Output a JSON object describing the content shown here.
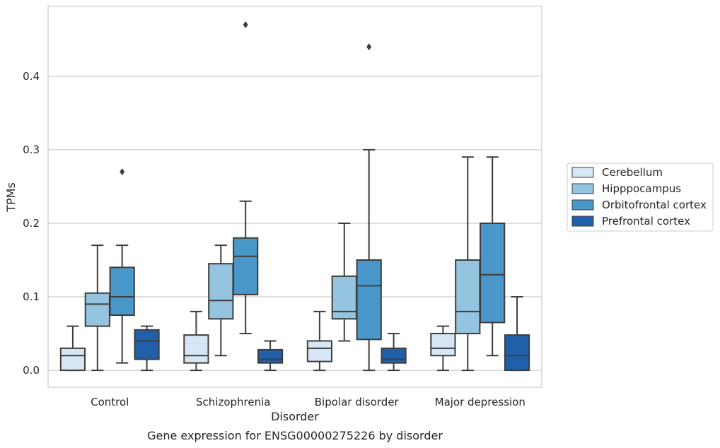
{
  "caption": "Gene expression for ENSG00000275226 by disorder",
  "chart_data": {
    "type": "box",
    "title": "",
    "xlabel": "Disorder",
    "ylabel": "TPMs",
    "ylim": [
      -0.023,
      0.495
    ],
    "yticks": [
      0.0,
      0.1,
      0.2,
      0.3,
      0.4
    ],
    "ytick_labels": [
      "0.0",
      "0.1",
      "0.2",
      "0.3",
      "0.4"
    ],
    "grid": "horizontal",
    "legend_position": "right",
    "categories": [
      "Control",
      "Schizophrenia",
      "Bipolar disorder",
      "Major depression"
    ],
    "series": [
      {
        "name": "Cerebellum",
        "color": "#d6e6f4",
        "boxes": [
          {
            "whisker_low": 0.0,
            "q1": 0.0,
            "median": 0.02,
            "q3": 0.03,
            "whisker_high": 0.06,
            "outliers": []
          },
          {
            "whisker_low": 0.0,
            "q1": 0.01,
            "median": 0.02,
            "q3": 0.048,
            "whisker_high": 0.08,
            "outliers": []
          },
          {
            "whisker_low": 0.0,
            "q1": 0.012,
            "median": 0.03,
            "q3": 0.04,
            "whisker_high": 0.08,
            "outliers": []
          },
          {
            "whisker_low": 0.0,
            "q1": 0.02,
            "median": 0.03,
            "q3": 0.05,
            "whisker_high": 0.06,
            "outliers": []
          }
        ]
      },
      {
        "name": "Hipppocampus",
        "color": "#94c4df",
        "boxes": [
          {
            "whisker_low": 0.0,
            "q1": 0.06,
            "median": 0.09,
            "q3": 0.105,
            "whisker_high": 0.17,
            "outliers": []
          },
          {
            "whisker_low": 0.02,
            "q1": 0.07,
            "median": 0.095,
            "q3": 0.145,
            "whisker_high": 0.17,
            "outliers": []
          },
          {
            "whisker_low": 0.04,
            "q1": 0.07,
            "median": 0.08,
            "q3": 0.128,
            "whisker_high": 0.2,
            "outliers": []
          },
          {
            "whisker_low": 0.0,
            "q1": 0.05,
            "median": 0.08,
            "q3": 0.15,
            "whisker_high": 0.29,
            "outliers": []
          }
        ]
      },
      {
        "name": "Orbitofrontal cortex",
        "color": "#4a98c9",
        "boxes": [
          {
            "whisker_low": 0.01,
            "q1": 0.075,
            "median": 0.1,
            "q3": 0.14,
            "whisker_high": 0.17,
            "outliers": [
              0.27
            ]
          },
          {
            "whisker_low": 0.05,
            "q1": 0.103,
            "median": 0.155,
            "q3": 0.18,
            "whisker_high": 0.23,
            "outliers": [
              0.47
            ]
          },
          {
            "whisker_low": 0.0,
            "q1": 0.042,
            "median": 0.115,
            "q3": 0.15,
            "whisker_high": 0.3,
            "outliers": [
              0.44
            ]
          },
          {
            "whisker_low": 0.02,
            "q1": 0.065,
            "median": 0.13,
            "q3": 0.2,
            "whisker_high": 0.29,
            "outliers": []
          }
        ]
      },
      {
        "name": "Prefrontal cortex",
        "color": "#2060aa",
        "boxes": [
          {
            "whisker_low": 0.0,
            "q1": 0.015,
            "median": 0.04,
            "q3": 0.055,
            "whisker_high": 0.06,
            "outliers": []
          },
          {
            "whisker_low": 0.0,
            "q1": 0.01,
            "median": 0.015,
            "q3": 0.028,
            "whisker_high": 0.04,
            "outliers": []
          },
          {
            "whisker_low": 0.0,
            "q1": 0.01,
            "median": 0.015,
            "q3": 0.03,
            "whisker_high": 0.05,
            "outliers": []
          },
          {
            "whisker_low": 0.0,
            "q1": 0.0,
            "median": 0.02,
            "q3": 0.048,
            "whisker_high": 0.1,
            "outliers": []
          }
        ]
      }
    ]
  }
}
